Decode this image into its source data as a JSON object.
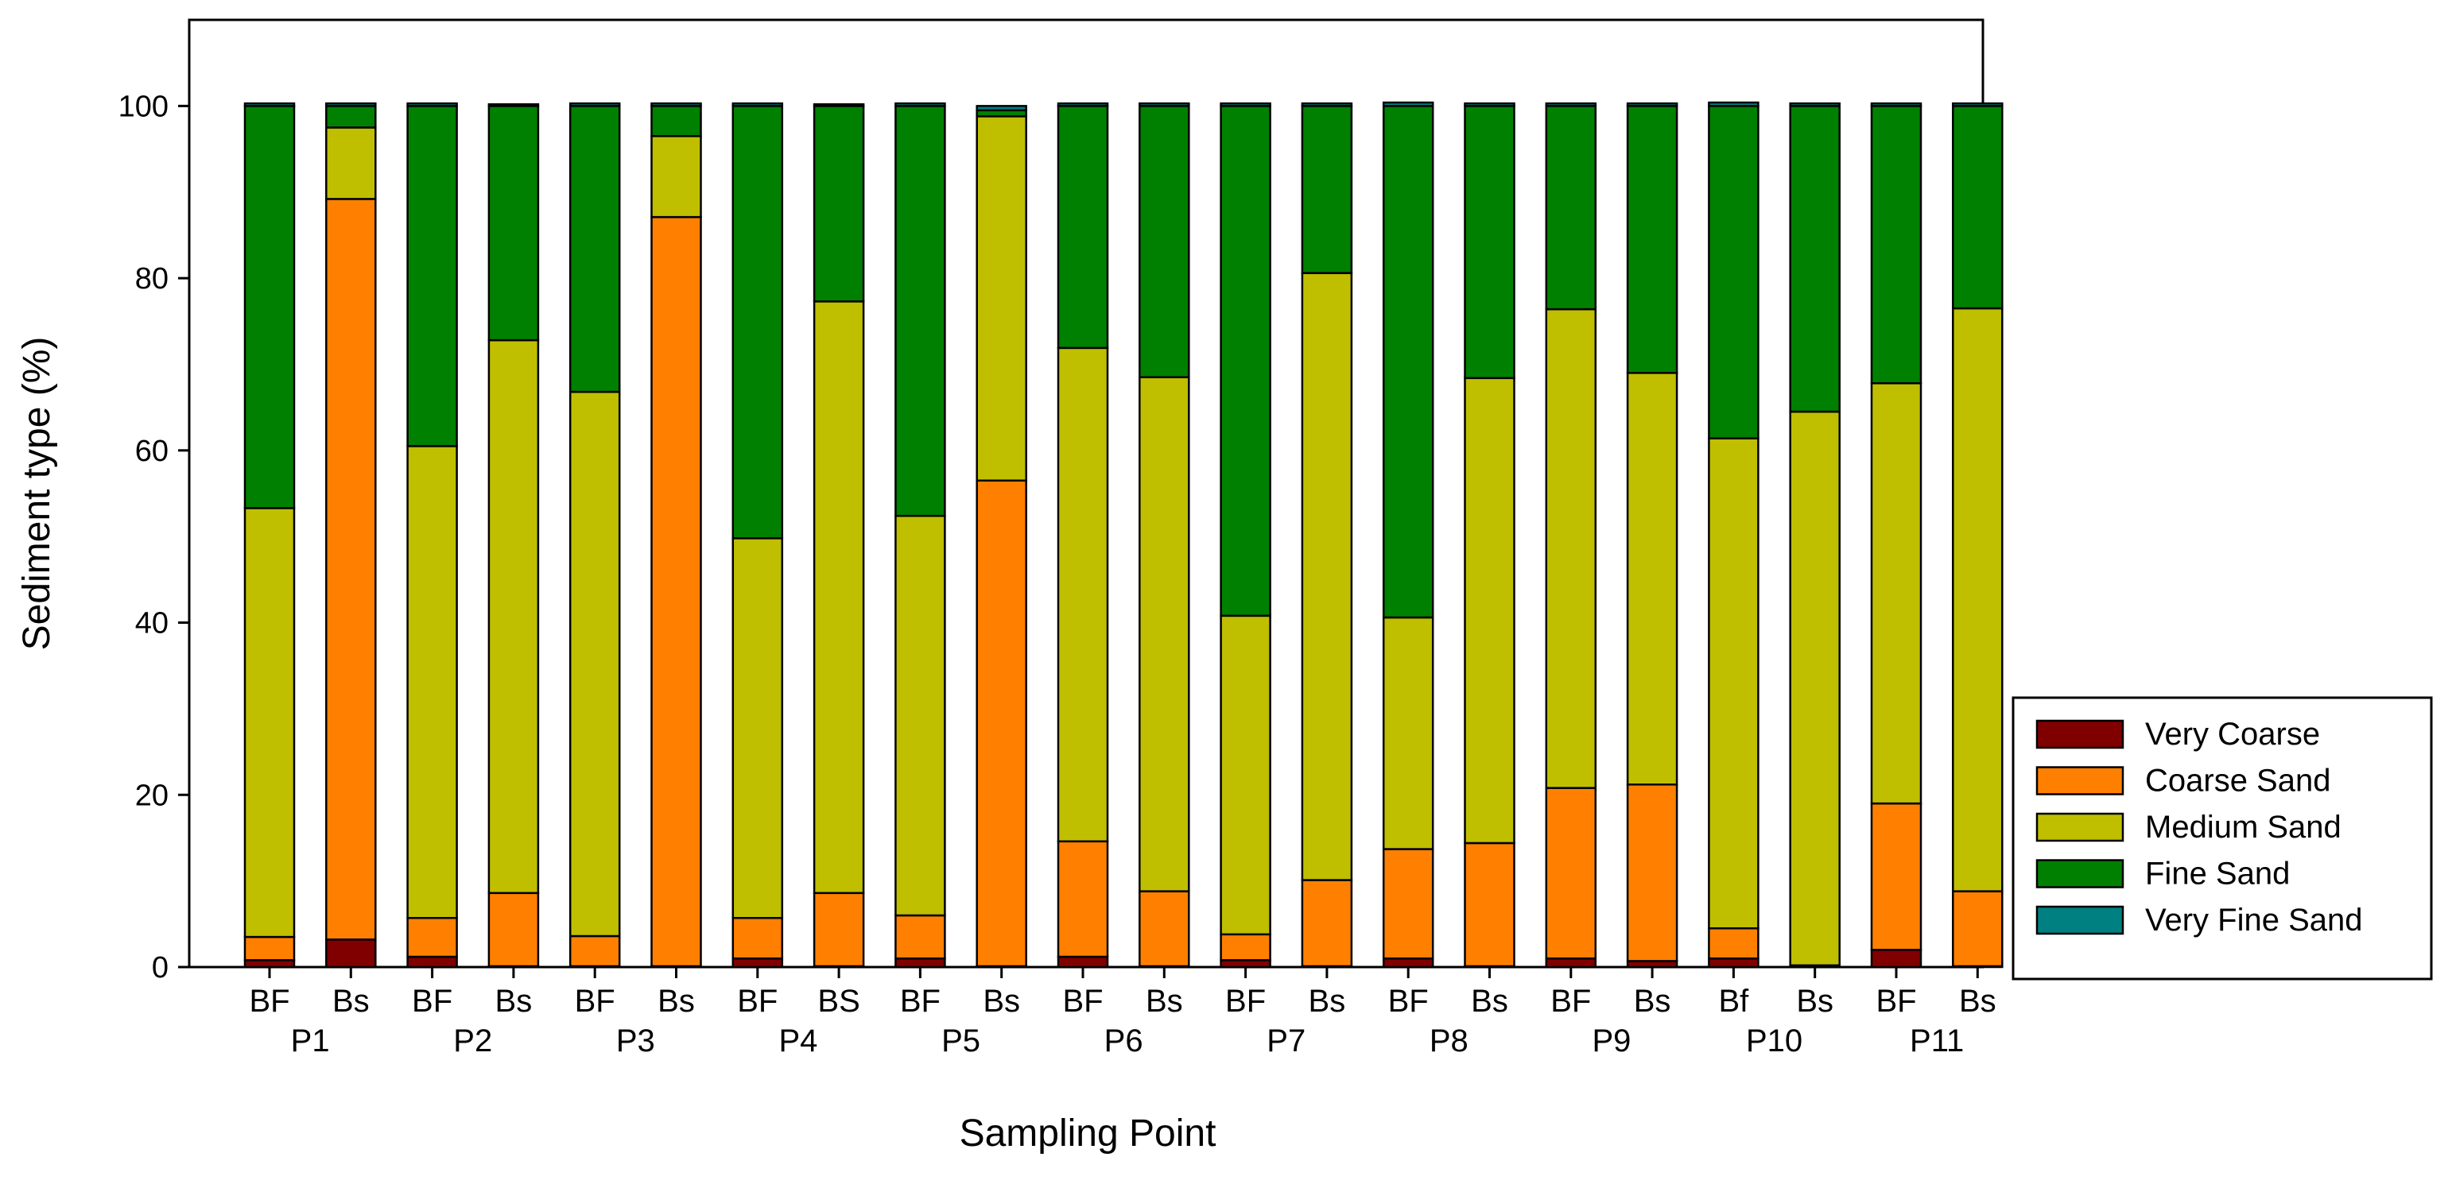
{
  "chart_data": {
    "type": "bar",
    "stacked": true,
    "xlabel": "Sampling Point",
    "ylabel": "Sediment type (%)",
    "ylim": [
      0,
      110
    ],
    "yticks": [
      0,
      20,
      40,
      60,
      80,
      100
    ],
    "legend_position": "right",
    "groups": [
      "P1",
      "P2",
      "P3",
      "P4",
      "P5",
      "P6",
      "P7",
      "P8",
      "P9",
      "P10",
      "P11"
    ],
    "categories": [
      "BF",
      "Bs",
      "BF",
      "Bs",
      "BF",
      "Bs",
      "BF",
      "BS",
      "BF",
      "Bs",
      "BF",
      "Bs",
      "BF",
      "Bs",
      "BF",
      "Bs",
      "BF",
      "Bs",
      "Bf",
      "Bs",
      "BF",
      "Bs"
    ],
    "series": [
      {
        "name": "Very Coarse",
        "color": "#800000",
        "values": [
          0.8,
          3.2,
          1.2,
          0.1,
          0.1,
          0.1,
          1.0,
          0.1,
          1.0,
          0.1,
          1.2,
          0.1,
          0.8,
          0.1,
          1.0,
          0.1,
          1.0,
          0.7,
          1.0,
          0.1,
          2.0,
          0.1
        ]
      },
      {
        "name": "Coarse Sand",
        "color": "#FF8000",
        "values": [
          2.7,
          86.0,
          4.5,
          8.5,
          3.5,
          87.0,
          4.7,
          8.5,
          5.0,
          56.4,
          13.4,
          8.7,
          3.0,
          10.0,
          12.7,
          14.3,
          19.8,
          20.5,
          3.5,
          0.1,
          17.0,
          8.7
        ]
      },
      {
        "name": "Medium Sand",
        "color": "#BFBF00",
        "values": [
          49.8,
          8.3,
          54.8,
          64.2,
          63.2,
          9.4,
          44.1,
          68.7,
          46.4,
          42.3,
          57.3,
          59.7,
          37.0,
          70.5,
          26.9,
          54.0,
          55.6,
          47.8,
          56.9,
          64.3,
          48.8,
          67.7
        ]
      },
      {
        "name": "Fine Sand",
        "color": "#008000",
        "values": [
          46.7,
          2.5,
          39.5,
          27.2,
          33.2,
          3.5,
          50.2,
          22.7,
          47.6,
          0.7,
          28.1,
          31.5,
          59.2,
          19.4,
          59.4,
          31.6,
          23.6,
          31.0,
          38.6,
          35.5,
          32.2,
          23.5
        ]
      },
      {
        "name": "Very Fine Sand",
        "color": "#008080",
        "values": [
          0.3,
          0.3,
          0.3,
          0.2,
          0.3,
          0.3,
          0.3,
          0.2,
          0.3,
          0.5,
          0.3,
          0.3,
          0.3,
          0.3,
          0.4,
          0.3,
          0.3,
          0.3,
          0.4,
          0.3,
          0.3,
          0.3
        ]
      }
    ]
  }
}
